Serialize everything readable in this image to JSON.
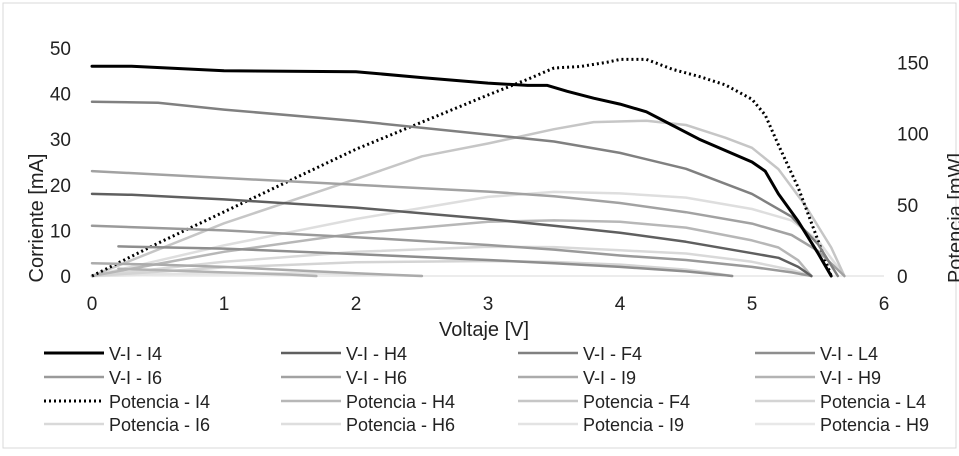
{
  "chart_data": {
    "type": "line",
    "title": "",
    "xlabel": "Voltaje [V]",
    "ylabel": "Corriente [mA]",
    "y2label": "Potencia [mW]",
    "xlim": [
      0,
      6
    ],
    "ylim": [
      0,
      50
    ],
    "y2lim": [
      0,
      160
    ],
    "xticks": [
      "0",
      "1",
      "2",
      "3",
      "4",
      "5",
      "6"
    ],
    "yticks": [
      "0",
      "10",
      "20",
      "30",
      "40",
      "50"
    ],
    "y2ticks": [
      "0",
      "50",
      "100",
      "150"
    ],
    "grid": false,
    "legend_position": "bottom",
    "series": [
      {
        "name": "V-I - I4",
        "axis": "left",
        "color": "#000000",
        "dash": "solid",
        "width": 3,
        "x": [
          0,
          0.3,
          1,
          2,
          2.5,
          3,
          3.3,
          3.45,
          3.6,
          3.8,
          4.0,
          4.2,
          4.4,
          4.6,
          4.8,
          5.0,
          5.1,
          5.2,
          5.35,
          5.5,
          5.6
        ],
        "y": [
          46,
          46,
          45,
          44.8,
          43.5,
          42.3,
          41.8,
          41.8,
          40.5,
          39,
          37.7,
          36,
          33,
          30,
          27.5,
          25,
          23,
          18,
          12,
          5,
          0
        ]
      },
      {
        "name": "V-I - H4",
        "axis": "left",
        "color": "#5f5f5f",
        "dash": "solid",
        "width": 2.5,
        "x": [
          0,
          0.3,
          1,
          2,
          3,
          3.5,
          4,
          4.5,
          5.0,
          5.2,
          5.35,
          5.45
        ],
        "y": [
          18,
          17.8,
          16.8,
          15,
          12.5,
          11,
          9.5,
          7.5,
          5,
          4,
          2,
          0
        ]
      },
      {
        "name": "V-I - F4",
        "axis": "left",
        "color": "#808080",
        "dash": "solid",
        "width": 2.5,
        "x": [
          0,
          0.5,
          1,
          2,
          3,
          3.5,
          4,
          4.5,
          5.0,
          5.3,
          5.5,
          5.65
        ],
        "y": [
          38.2,
          38,
          36.5,
          34,
          31,
          29.5,
          27,
          23.5,
          18,
          13,
          7,
          0
        ]
      },
      {
        "name": "V-I - L4",
        "axis": "left",
        "color": "#8e8e8e",
        "dash": "solid",
        "width": 2.5,
        "x": [
          0.2,
          1,
          2,
          3,
          3.5,
          4,
          4.5,
          4.75,
          4.85
        ],
        "y": [
          6.5,
          6,
          4.8,
          3.5,
          2.8,
          2,
          1,
          0.3,
          0
        ]
      },
      {
        "name": "V-I - I6",
        "axis": "left",
        "color": "#9a9a9a",
        "dash": "solid",
        "width": 2.5,
        "x": [
          0,
          1,
          2,
          3,
          3.5,
          4,
          4.5,
          5,
          5.3,
          5.45
        ],
        "y": [
          11,
          10,
          8.5,
          6.8,
          5.8,
          4.5,
          3.5,
          2,
          0.8,
          0
        ]
      },
      {
        "name": "V-I - H6",
        "axis": "left",
        "color": "#a2a2a2",
        "dash": "solid",
        "width": 2.5,
        "x": [
          0,
          1,
          2,
          3,
          3.5,
          4,
          4.5,
          5,
          5.3,
          5.5,
          5.7
        ],
        "y": [
          23,
          21.5,
          20,
          18.5,
          17.5,
          16,
          14,
          11.5,
          9,
          5.5,
          0
        ]
      },
      {
        "name": "V-I - I9",
        "axis": "left",
        "color": "#ababab",
        "dash": "solid",
        "width": 2.5,
        "x": [
          0,
          0.5,
          1,
          1.5,
          2,
          2.5
        ],
        "y": [
          2.8,
          2.5,
          2,
          1.3,
          0.6,
          0
        ]
      },
      {
        "name": "V-I - H9",
        "axis": "left",
        "color": "#b3b3b3",
        "dash": "solid",
        "width": 2.5,
        "x": [
          0.2,
          0.5,
          1,
          1.5,
          1.7
        ],
        "y": [
          1.6,
          1.3,
          0.8,
          0.3,
          0
        ]
      },
      {
        "name": "Potencia - I4",
        "axis": "right",
        "color": "#000000",
        "dash": "dotted",
        "width": 3,
        "x": [
          0,
          0.5,
          1,
          1.5,
          2,
          2.5,
          3,
          3.3,
          3.5,
          3.7,
          3.9,
          4.0,
          4.2,
          4.4,
          4.6,
          4.8,
          5.0,
          5.1,
          5.2,
          5.35,
          5.5,
          5.6
        ],
        "y": [
          0,
          23,
          45,
          67,
          89,
          108,
          127,
          138,
          146,
          147,
          150,
          152,
          152,
          145,
          140,
          134,
          124,
          113,
          92,
          62,
          25,
          0
        ]
      },
      {
        "name": "Potencia - H4",
        "axis": "right",
        "color": "#b7b7b7",
        "dash": "solid",
        "width": 2.5,
        "x": [
          0,
          1,
          2,
          3,
          3.5,
          4,
          4.5,
          5,
          5.2,
          5.35,
          5.45
        ],
        "y": [
          0,
          17,
          30,
          38,
          39,
          38,
          34,
          25,
          20,
          11,
          0
        ]
      },
      {
        "name": "Potencia - F4",
        "axis": "right",
        "color": "#c6c6c6",
        "dash": "solid",
        "width": 2.5,
        "x": [
          0,
          1,
          2,
          2.5,
          3,
          3.5,
          3.8,
          4.2,
          4.5,
          4.8,
          5.0,
          5.2,
          5.4,
          5.6,
          5.7
        ],
        "y": [
          0,
          37,
          68,
          84,
          93,
          103,
          108,
          109,
          106,
          97,
          90,
          75,
          50,
          20,
          0
        ]
      },
      {
        "name": "Potencia - L4",
        "axis": "right",
        "color": "#d4d4d4",
        "dash": "solid",
        "width": 2.5,
        "x": [
          0,
          1,
          2,
          3,
          3.5,
          4,
          4.5,
          4.75,
          4.85
        ],
        "y": [
          0,
          6,
          9.6,
          10.5,
          9.8,
          8,
          4.5,
          1.4,
          0
        ]
      },
      {
        "name": "Potencia - I6",
        "axis": "right",
        "color": "#d9d9d9",
        "dash": "solid",
        "width": 2.5,
        "x": [
          0,
          1,
          2,
          3,
          3.5,
          4,
          4.5,
          5,
          5.3,
          5.45
        ],
        "y": [
          0,
          10,
          17,
          20.5,
          20.3,
          18,
          15.8,
          10,
          4.2,
          0
        ]
      },
      {
        "name": "Potencia - H6",
        "axis": "right",
        "color": "#dedede",
        "dash": "solid",
        "width": 2.5,
        "x": [
          0,
          1,
          2,
          3,
          3.5,
          4,
          4.5,
          5,
          5.3,
          5.5,
          5.7
        ],
        "y": [
          0,
          21.5,
          40,
          55.5,
          59,
          58,
          55,
          47,
          39,
          25,
          0
        ]
      },
      {
        "name": "Potencia - I9",
        "axis": "right",
        "color": "#e3e3e3",
        "dash": "solid",
        "width": 2.5,
        "x": [
          0,
          0.5,
          1,
          1.5,
          2,
          2.5
        ],
        "y": [
          0,
          1.3,
          2,
          2,
          1.2,
          0
        ]
      },
      {
        "name": "Potencia - H9",
        "axis": "right",
        "color": "#e8e8e8",
        "dash": "solid",
        "width": 2.5,
        "x": [
          0,
          0.5,
          1,
          1.5,
          1.7
        ],
        "y": [
          0,
          0.7,
          0.8,
          0.45,
          0
        ]
      }
    ]
  }
}
